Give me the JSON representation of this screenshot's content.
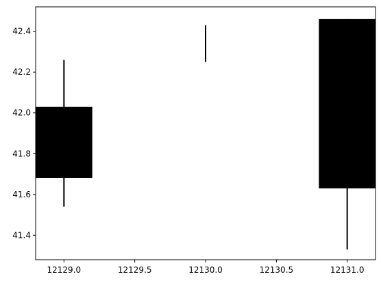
{
  "chart_data": {
    "type": "candlestick",
    "title": "",
    "xlabel": "",
    "ylabel": "",
    "xlim": [
      12128.8,
      12131.2
    ],
    "ylim": [
      41.28,
      42.52
    ],
    "grid": false,
    "candles": [
      {
        "x": 12129.0,
        "open": 42.03,
        "high": 42.26,
        "low": 41.54,
        "close": 41.68
      },
      {
        "x": 12130.0,
        "open": 42.25,
        "high": 42.43,
        "low": 42.25,
        "close": 42.25
      },
      {
        "x": 12131.0,
        "open": 41.63,
        "high": 42.46,
        "low": 41.33,
        "close": 42.46
      }
    ],
    "x_ticks": [
      {
        "value": 12129.0,
        "label": "12129.0"
      },
      {
        "value": 12129.5,
        "label": "12129.5"
      },
      {
        "value": 12130.0,
        "label": "12130.0"
      },
      {
        "value": 12130.5,
        "label": "12130.5"
      },
      {
        "value": 12131.0,
        "label": "12131.0"
      }
    ],
    "y_ticks": [
      {
        "value": 41.4,
        "label": "41.4"
      },
      {
        "value": 41.6,
        "label": "41.6"
      },
      {
        "value": 41.8,
        "label": "41.8"
      },
      {
        "value": 42.0,
        "label": "42.0"
      },
      {
        "value": 42.2,
        "label": "42.2"
      },
      {
        "value": 42.4,
        "label": "42.4"
      }
    ],
    "colors": {
      "candle": "#000000",
      "axes": "#000000",
      "background": "#ffffff"
    }
  }
}
